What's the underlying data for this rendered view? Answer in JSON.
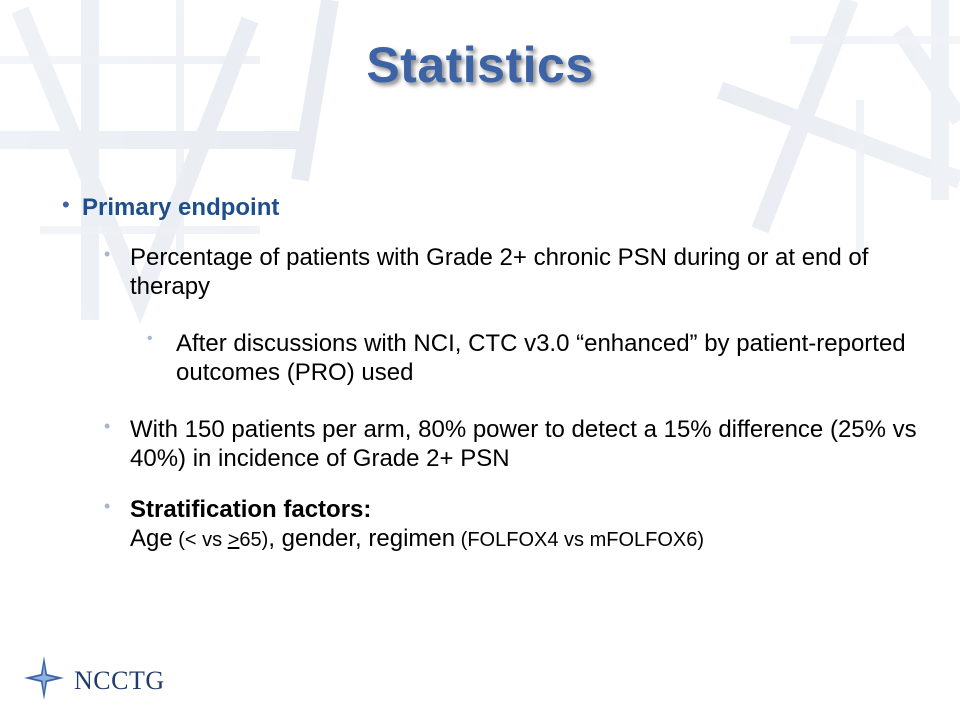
{
  "slide": {
    "title": "Statistics"
  },
  "bullets": {
    "b1": "Primary endpoint",
    "b2": "Percentage of patients with Grade 2+ chronic PSN during or at end of therapy",
    "b3": "After discussions with NCI, CTC v3.0 “enhanced” by patient-reported outcomes (PRO) used",
    "b4": "With 150 patients per arm, 80% power to detect a 15% difference (25% vs 40%) in incidence of Grade 2+ PSN",
    "b5_heading": "Stratification factors:",
    "b5_age": "Age",
    "b5_age_paren_open": " (< vs ",
    "b5_age_ge": ">",
    "b5_age_paren_close": "65)",
    "b5_sep1": ", gender, ",
    "b5_regimen": "regimen",
    "b5_regimen_detail": " (FOLFOX4 vs mFOLFOX6)"
  },
  "logo": {
    "text": "NCCTG",
    "icon": "star-icon"
  },
  "colors": {
    "title": "#3c63a6",
    "heading": "#1f4e8c",
    "bullet_light": "#a7b6cc",
    "background_lines": "#dde3ec"
  }
}
